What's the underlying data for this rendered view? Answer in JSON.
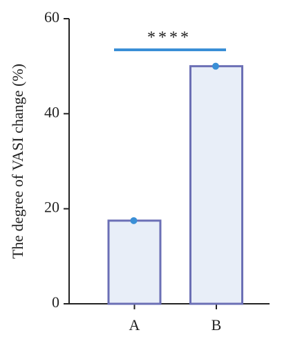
{
  "chart_data": {
    "type": "bar",
    "y_label": "The degree of VASI change (%)",
    "categories": [
      "A",
      "B"
    ],
    "values": [
      17.5,
      50
    ],
    "color": "#e8eef8",
    "edge_color": "#6b6fb5",
    "point_color": "#3a8fd6",
    "annotation": "****",
    "annotation_color": "#3a8fd6",
    "ylim": [
      0,
      60
    ],
    "yticks": [
      0,
      20,
      40,
      60
    ],
    "grid": false
  }
}
